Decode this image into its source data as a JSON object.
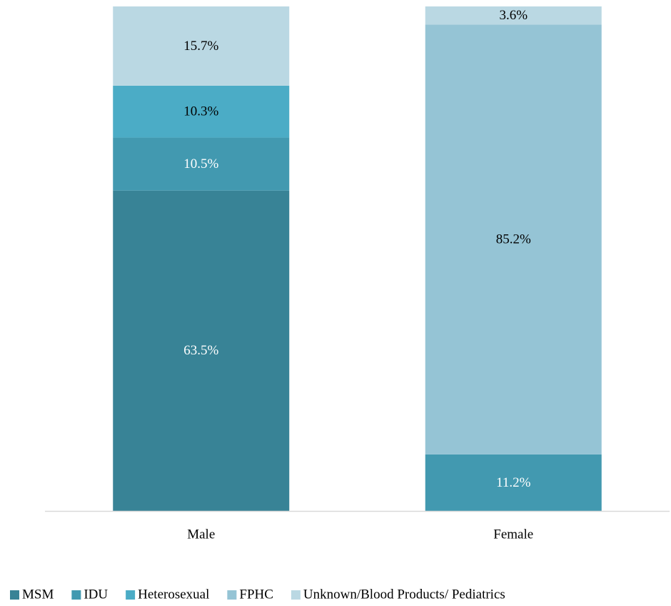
{
  "chart_data": {
    "type": "stacked_bar",
    "categories": [
      "Male",
      "Female"
    ],
    "ylim": [
      0,
      100
    ],
    "series": [
      {
        "name": "MSM",
        "color": "#388396",
        "label_color": "#ffffff",
        "values": [
          63.5,
          null
        ],
        "value_labels": [
          "63.5%",
          null
        ]
      },
      {
        "name": "IDU",
        "color": "#4299b0",
        "label_color": "#ffffff",
        "values": [
          10.5,
          11.2
        ],
        "value_labels": [
          "10.5%",
          "11.2%"
        ]
      },
      {
        "name": "Heterosexual",
        "color": "#4bacc6",
        "label_color": "#000000",
        "values": [
          10.3,
          null
        ],
        "value_labels": [
          "10.3%",
          null
        ]
      },
      {
        "name": "FPHC",
        "color": "#95c4d5",
        "label_color": "#000000",
        "values": [
          null,
          85.2
        ],
        "value_labels": [
          null,
          "85.2%"
        ]
      },
      {
        "name": "Unknown/Blood Products/ Pediatrics",
        "color": "#bad8e3",
        "label_color": "#000000",
        "values": [
          15.7,
          3.6
        ],
        "value_labels": [
          "15.7%",
          "3.6%"
        ]
      }
    ],
    "legend": "bottom"
  }
}
